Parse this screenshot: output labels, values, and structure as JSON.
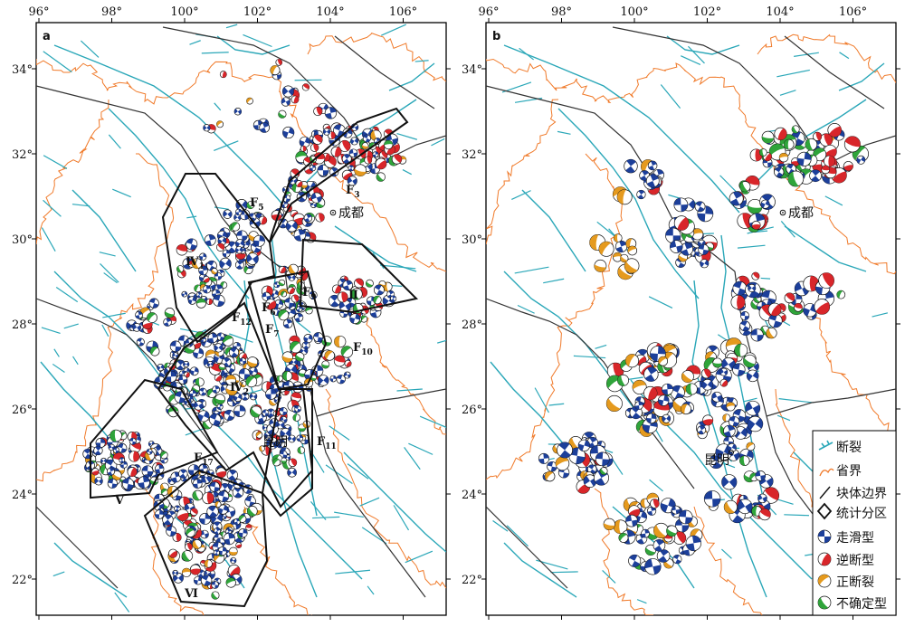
{
  "panels": [
    {
      "id": "a",
      "letter": "a"
    },
    {
      "id": "b",
      "letter": "b"
    }
  ],
  "lon_ticks": [
    "96°",
    "98°",
    "100°",
    "102°",
    "104°",
    "106°"
  ],
  "lat_ticks": [
    "34°",
    "32°",
    "30°",
    "28°",
    "26°",
    "24°",
    "22°"
  ],
  "cities": {
    "chengdu": "成都",
    "kunming": "昆明"
  },
  "zones": [
    {
      "roman": "Ⅳ",
      "sub": "1"
    },
    {
      "roman": "Ⅳ",
      "sub": "2"
    },
    {
      "roman": "Ⅱ",
      "sub": ""
    },
    {
      "roman": "Ⅴ",
      "sub": ""
    },
    {
      "roman": "Ⅵ",
      "sub": ""
    }
  ],
  "faults": [
    {
      "name": "F",
      "sub": "3"
    },
    {
      "name": "F",
      "sub": "5"
    },
    {
      "name": "F",
      "sub": "6"
    },
    {
      "name": "F",
      "sub": "7"
    },
    {
      "name": "F",
      "sub": "9"
    },
    {
      "name": "F",
      "sub": "10"
    },
    {
      "name": "F",
      "sub": "11"
    },
    {
      "name": "F",
      "sub": "12"
    },
    {
      "name": "F",
      "sub": "17"
    }
  ],
  "legend": {
    "fault": "断裂",
    "province": "省界",
    "block": "块体边界",
    "zone": "统计分区",
    "strike_slip": "走滑型",
    "reverse": "逆断型",
    "normal": "正断裂",
    "undetermined": "不确定型"
  },
  "colors": {
    "fault": "#2aa7b8",
    "province": "#f07a2a",
    "block": "#333333",
    "zone": "#111111",
    "strike_slip": "#1c3f9a",
    "reverse": "#d8262a",
    "normal": "#e59a1e",
    "undetermined": "#2fa43a"
  }
}
